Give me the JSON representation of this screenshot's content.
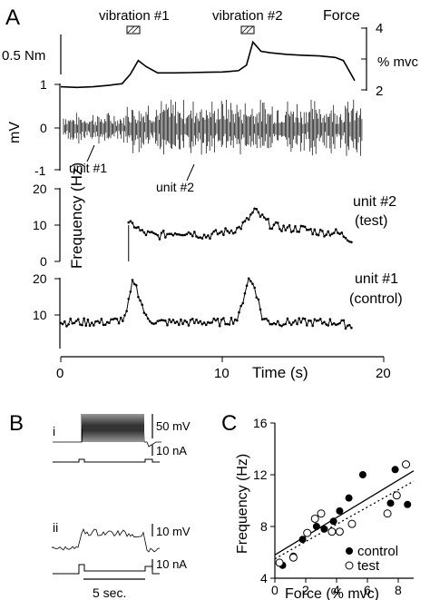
{
  "panel_labels": {
    "a": "A",
    "b": "B",
    "c": "C"
  },
  "panel_a": {
    "vibration_1": "vibration #1",
    "vibration_2": "vibration #2",
    "force_label": "Force",
    "nm_scale": "0.5 Nm",
    "force_axis_label": "% mvc",
    "force_ticks": [
      "4",
      "3",
      "2"
    ],
    "emg_ylabel": "mV",
    "emg_ticks": [
      "1",
      "0",
      "-1"
    ],
    "unit1_label": "unit #1",
    "unit2_label": "unit #2",
    "freq_ylabel": "Frequency (Hz)",
    "freq_ticks": [
      "20",
      "10",
      "0"
    ],
    "freq_ticks_lower": [
      "20",
      "10"
    ],
    "trace2_label": "unit #2",
    "trace2_sub": "(test)",
    "trace1_label": "unit #1",
    "trace1_sub": "(control)",
    "time_ticks": [
      "0",
      "10",
      "20"
    ],
    "time_label": "Time (s)"
  },
  "panel_b": {
    "row_i": "i",
    "row_ii": "ii",
    "scale_50mv": "50 mV",
    "scale_10na_1": "10 nA",
    "scale_10mv": "10 mV",
    "scale_10na_2": "10 nA",
    "time_scale": "5 sec."
  },
  "chart_data": [
    {
      "type": "line",
      "title": "Force",
      "ylabel": "% mvc",
      "xlabel": "Time (s)",
      "xlim": [
        0,
        20
      ],
      "ylim": [
        2,
        4
      ],
      "series": [
        {
          "x": [
            0,
            1,
            2,
            3,
            3.8,
            4.3,
            4.8,
            5.3,
            6,
            7,
            8,
            9,
            10,
            11,
            11.5,
            11.9,
            12.4,
            13,
            14,
            15,
            16,
            17,
            17.5,
            18.2
          ],
          "values": [
            2.1,
            2.08,
            2.1,
            2.15,
            2.2,
            2.5,
            2.95,
            2.75,
            2.55,
            2.55,
            2.56,
            2.57,
            2.58,
            2.62,
            2.8,
            3.55,
            3.25,
            3.2,
            3.15,
            3.12,
            3.1,
            3.05,
            2.95,
            2.3
          ]
        }
      ],
      "annotations": [
        "vibration #1",
        "vibration #2",
        "0.5 Nm"
      ]
    },
    {
      "type": "line",
      "ylabel": "Frequency (Hz)",
      "xlim": [
        0,
        20
      ],
      "ylim": [
        0,
        20
      ],
      "series": [
        {
          "name": "unit #2 (test)",
          "x": [
            4.2,
            4.6,
            5,
            6,
            7,
            8,
            9,
            10,
            11,
            11.5,
            12,
            12.5,
            13,
            14,
            15,
            16,
            17,
            17.6,
            18
          ],
          "values": [
            10,
            10,
            8,
            7,
            8,
            8,
            7,
            8,
            9,
            11,
            14,
            12,
            10,
            9,
            9,
            8,
            8,
            7,
            6
          ]
        }
      ]
    },
    {
      "type": "line",
      "xlabel": "Time (s)",
      "xlim": [
        0,
        20
      ],
      "ylim": [
        0,
        20
      ],
      "series": [
        {
          "name": "unit #1 (control)",
          "x": [
            0,
            1,
            2,
            3,
            4,
            4.5,
            4.8,
            5.3,
            6,
            7,
            8,
            9,
            10,
            11,
            11.6,
            12,
            12.5,
            13,
            14,
            15,
            16,
            17,
            18
          ],
          "values": [
            8,
            8,
            8,
            8,
            9,
            20,
            16,
            9,
            8,
            8,
            8,
            8,
            8,
            9,
            20,
            18,
            9,
            8,
            8,
            8,
            8,
            8,
            7
          ]
        }
      ]
    },
    {
      "type": "scatter",
      "xlabel": "Force (% mvc)",
      "ylabel": "Frequency (Hz)",
      "xlim": [
        0,
        9
      ],
      "ylim": [
        4,
        16
      ],
      "series": [
        {
          "name": "control",
          "x": [
            0.5,
            1.2,
            1.8,
            2.7,
            3.2,
            3.8,
            4.2,
            4.8,
            5.7,
            7.5,
            7.8,
            8.6
          ],
          "values": [
            5.0,
            5.7,
            7.0,
            8.0,
            7.8,
            8.4,
            9.2,
            10.2,
            12.0,
            9.8,
            12.4,
            9.7
          ]
        },
        {
          "name": "test",
          "x": [
            0.3,
            1.2,
            2.1,
            2.6,
            3.0,
            3.7,
            4.2,
            5.0,
            7.3,
            7.9,
            8.5
          ],
          "values": [
            5.2,
            5.6,
            7.5,
            8.6,
            9.0,
            7.6,
            7.6,
            8.2,
            9.0,
            10.4,
            12.8
          ]
        }
      ],
      "fit_lines": [
        {
          "series": "control",
          "style": "solid",
          "x": [
            0,
            9
          ],
          "values": [
            5.8,
            12.3
          ]
        },
        {
          "series": "test",
          "style": "dotted",
          "x": [
            0,
            9
          ],
          "values": [
            5.5,
            11.5
          ]
        }
      ],
      "x_ticks": [
        "0",
        "2",
        "4",
        "6",
        "8"
      ],
      "y_ticks": [
        "4",
        "8",
        "12",
        "16"
      ],
      "legend": [
        "control",
        "test"
      ],
      "legend_position": "bottom-right"
    }
  ]
}
